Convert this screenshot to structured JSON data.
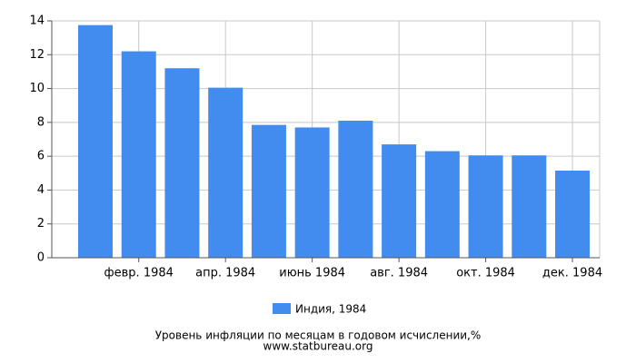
{
  "chart_data": {
    "type": "bar",
    "categories": [
      null,
      "февр. 1984",
      null,
      "апр. 1984",
      null,
      "июнь 1984",
      null,
      "авг. 1984",
      null,
      "окт. 1984",
      null,
      "дек. 1984"
    ],
    "series": [
      {
        "name": "Индия, 1984",
        "color": "#428bef",
        "values": [
          13.75,
          12.2,
          11.2,
          10.05,
          7.85,
          7.7,
          8.1,
          6.7,
          6.3,
          6.05,
          6.05,
          5.15
        ]
      }
    ],
    "ylim": [
      0,
      14
    ],
    "yticks": [
      0,
      2,
      4,
      6,
      8,
      10,
      12,
      14
    ],
    "grid": true,
    "title": "Уровень инфляции по месяцам в годовом исчислении,%",
    "source": "www.statbureau.org"
  }
}
